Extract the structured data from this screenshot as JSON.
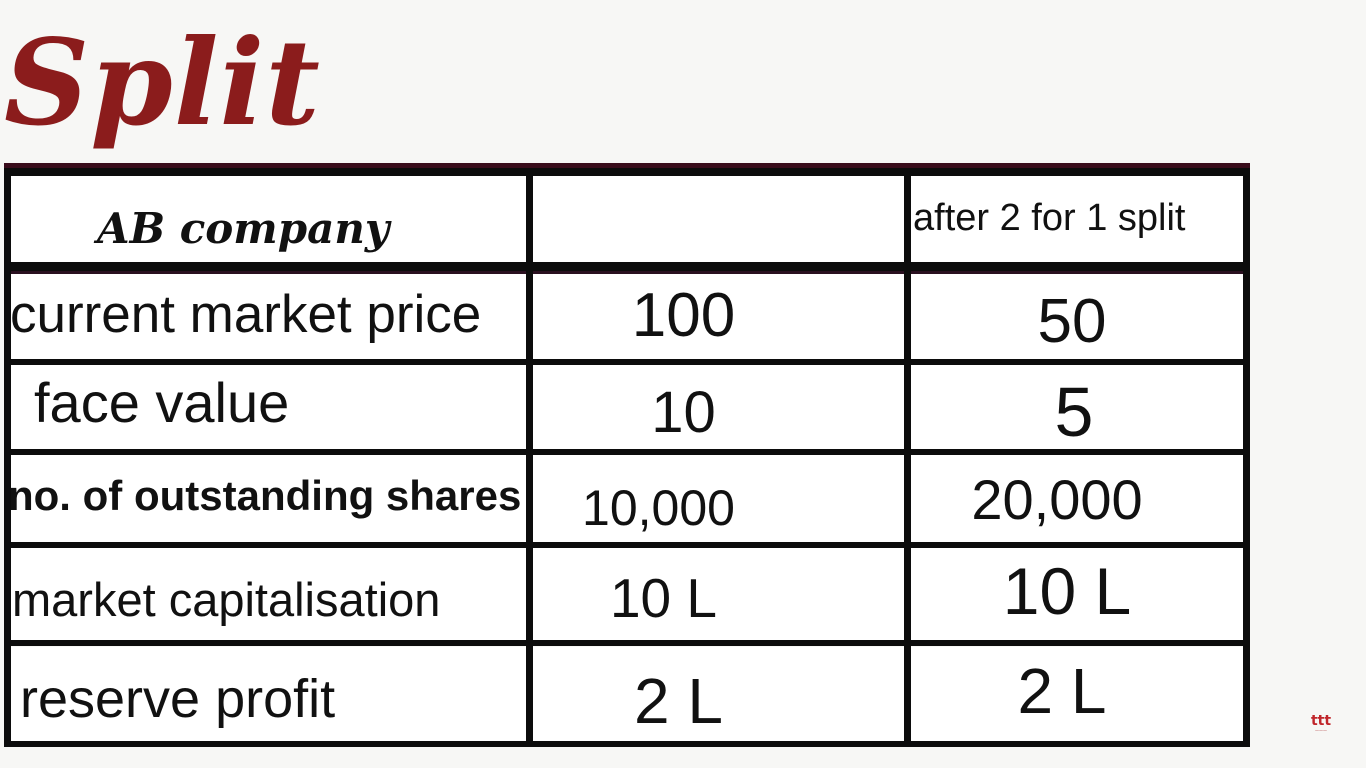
{
  "title": "Split",
  "table": {
    "header": {
      "company": "AB company",
      "col1": "",
      "col2": "after 2 for 1 split"
    },
    "rows": [
      {
        "label": "current market price",
        "before": "100",
        "after": "50"
      },
      {
        "label": "face value",
        "before": "10",
        "after": "5"
      },
      {
        "label": "no. of outstanding shares",
        "before": "10,000",
        "after": "20,000"
      },
      {
        "label": "market capitalisation",
        "before": "10 L",
        "after": "10 L"
      },
      {
        "label": "reserve profit",
        "before": "2 L",
        "after": "2 L"
      }
    ]
  },
  "logo": {
    "mark": "ttt"
  },
  "colors": {
    "title": "#8b1c1c",
    "grid": "#0c0c0c",
    "background": "#f7f7f5"
  }
}
